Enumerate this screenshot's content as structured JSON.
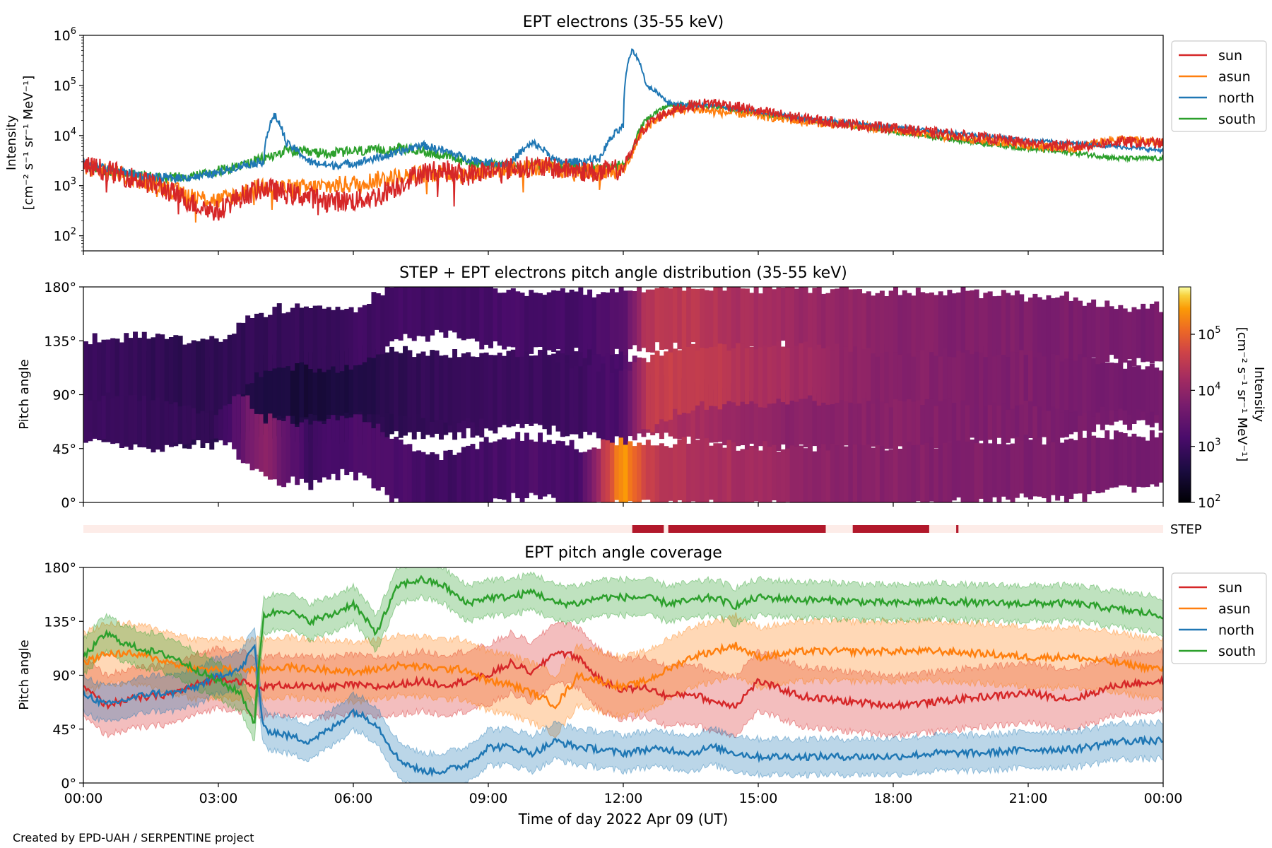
{
  "footer": "Created by EPD-UAH / SERPENTINE project",
  "colors": {
    "sun": "#d62728",
    "asun": "#ff7f0e",
    "north": "#1f77b4",
    "south": "#2ca02c",
    "step_bar": "#b2182b",
    "step_bg": "#fdece8"
  },
  "chart_data": [
    {
      "type": "line",
      "title": "EPT electrons (35-55 keV)",
      "xlabel": "",
      "ylabel_lines": [
        "Intensity",
        "[cm⁻² s⁻¹ sr⁻¹ MeV⁻¹]"
      ],
      "yscale": "log",
      "ylim": [
        50,
        1000000
      ],
      "yticks": [
        {
          "v": 100,
          "m": "10",
          "e": "2"
        },
        {
          "v": 1000,
          "m": "10",
          "e": "3"
        },
        {
          "v": 10000,
          "m": "10",
          "e": "4"
        },
        {
          "v": 100000,
          "m": "10",
          "e": "5"
        },
        {
          "v": 1000000,
          "m": "10",
          "e": "6"
        }
      ],
      "xlim_hours": [
        0,
        24
      ],
      "legend_placement": "outside-right-top",
      "legend": [
        "sun",
        "asun",
        "north",
        "south"
      ],
      "x_hours": [
        0,
        0.5,
        1,
        1.5,
        2,
        2.5,
        3,
        3.5,
        4,
        4.25,
        4.5,
        5,
        5.5,
        6,
        6.5,
        7,
        7.5,
        8,
        8.5,
        9,
        9.5,
        10,
        10.5,
        11,
        11.5,
        12,
        12.2,
        12.5,
        13,
        13.5,
        14,
        14.5,
        15,
        16,
        17,
        18,
        19,
        20,
        21,
        22,
        23,
        24
      ],
      "series": [
        {
          "name": "sun",
          "values": [
            2500,
            2000,
            1500,
            1100,
            700,
            400,
            300,
            600,
            900,
            800,
            700,
            600,
            500,
            500,
            600,
            1000,
            1800,
            2000,
            1600,
            2000,
            2200,
            2400,
            2200,
            2000,
            1800,
            2200,
            4500,
            15000,
            30000,
            40000,
            45000,
            38000,
            30000,
            22000,
            17000,
            14000,
            11000,
            9000,
            7000,
            6000,
            7500,
            7000
          ]
        },
        {
          "name": "asun",
          "values": [
            2500,
            2000,
            1500,
            1100,
            800,
            600,
            500,
            700,
            1000,
            950,
            900,
            900,
            1000,
            1100,
            1300,
            1500,
            1700,
            1800,
            1600,
            2000,
            2200,
            2300,
            2100,
            2000,
            1800,
            2000,
            4000,
            14000,
            28000,
            35000,
            30000,
            28000,
            25000,
            19000,
            16000,
            13000,
            10000,
            8000,
            6500,
            5500,
            8500,
            7000
          ]
        },
        {
          "name": "north",
          "values": [
            3000,
            2200,
            1800,
            1500,
            1400,
            1500,
            1800,
            2500,
            3000,
            25000,
            7000,
            3000,
            2500,
            2800,
            3500,
            4500,
            6500,
            5000,
            3500,
            2800,
            2800,
            7000,
            3000,
            3000,
            3500,
            15000,
            500000,
            100000,
            45000,
            40000,
            40000,
            35000,
            30000,
            22000,
            18000,
            15000,
            12000,
            10000,
            8000,
            7000,
            6000,
            5000
          ]
        },
        {
          "name": "south",
          "values": [
            2500,
            2000,
            1700,
            1500,
            1500,
            1600,
            2000,
            2500,
            3500,
            4000,
            5000,
            4500,
            4500,
            4800,
            5000,
            5500,
            5000,
            4000,
            3000,
            2600,
            2500,
            2600,
            2400,
            2300,
            2200,
            2500,
            4500,
            20000,
            40000,
            42000,
            38000,
            32000,
            27000,
            21000,
            16000,
            12000,
            9000,
            7000,
            5500,
            4500,
            3500,
            3500
          ]
        }
      ]
    },
    {
      "type": "heatmap",
      "title": "STEP + EPT electrons pitch angle distribution (35-55 keV)",
      "ylabel": "Pitch angle",
      "ylim": [
        0,
        180
      ],
      "yticks": [
        "0°",
        "45°",
        "90°",
        "135°",
        "180°"
      ],
      "colorbar": {
        "scale": "log",
        "range": [
          100,
          700000
        ],
        "ticks": [
          {
            "v": 100,
            "m": "10",
            "e": "2"
          },
          {
            "v": 1000,
            "m": "10",
            "e": "3"
          },
          {
            "v": 10000,
            "m": "10",
            "e": "4"
          },
          {
            "v": 100000,
            "m": "10",
            "e": "5"
          }
        ],
        "label": "Intensity",
        "label2": "[cm⁻² s⁻¹ sr⁻¹ MeV⁻¹]"
      },
      "x_hours": [
        0,
        1,
        2,
        3,
        4,
        5,
        6,
        7,
        8,
        9,
        10,
        11,
        12,
        12.5,
        13,
        14,
        15,
        16,
        17,
        18,
        19,
        20,
        21,
        22,
        23,
        24
      ],
      "bands": [
        {
          "name": "sun-band",
          "centers": [
            80,
            75,
            75,
            80,
            85,
            80,
            80,
            85,
            85,
            90,
            95,
            100,
            95,
            85,
            80,
            75,
            70,
            70,
            68,
            70,
            72,
            75,
            75,
            80,
            85,
            85
          ],
          "half_width": [
            25,
            25,
            28,
            30,
            30,
            30,
            30,
            30,
            30,
            30,
            30,
            30,
            30,
            28,
            25,
            25,
            25,
            25,
            25,
            25,
            25,
            25,
            25,
            25,
            20,
            20
          ],
          "log_intensity": [
            3.0,
            2.9,
            2.8,
            2.7,
            2.7,
            2.6,
            2.7,
            2.8,
            2.9,
            3.0,
            3.0,
            3.0,
            3.2,
            4.2,
            4.3,
            4.2,
            4.0,
            3.9,
            3.9,
            3.9,
            3.85,
            3.8,
            3.8,
            3.75,
            3.7,
            3.7
          ]
        },
        {
          "name": "asun-band",
          "centers": [
            100,
            100,
            95,
            90,
            95,
            100,
            100,
            100,
            95,
            95,
            95,
            85,
            80,
            90,
            100,
            110,
            108,
            110,
            110,
            110,
            110,
            105,
            108,
            100,
            95,
            95
          ],
          "half_width": [
            25,
            25,
            28,
            30,
            30,
            28,
            28,
            28,
            28,
            30,
            30,
            30,
            30,
            30,
            28,
            28,
            25,
            25,
            25,
            25,
            25,
            25,
            25,
            25,
            20,
            20
          ],
          "log_intensity": [
            3.0,
            2.9,
            2.8,
            2.7,
            2.6,
            2.5,
            2.6,
            2.8,
            2.9,
            3.0,
            3.0,
            3.0,
            3.2,
            4.5,
            4.6,
            4.5,
            4.3,
            4.2,
            4.0,
            3.9,
            3.85,
            3.8,
            3.8,
            3.75,
            3.7,
            3.7
          ]
        },
        {
          "name": "north-band",
          "centers": [
            80,
            70,
            75,
            85,
            45,
            40,
            50,
            25,
            15,
            25,
            30,
            20,
            25,
            25,
            25,
            25,
            22,
            22,
            22,
            22,
            25,
            25,
            28,
            28,
            35,
            35
          ],
          "half_width": [
            25,
            25,
            28,
            30,
            25,
            25,
            25,
            25,
            25,
            25,
            25,
            25,
            25,
            25,
            25,
            25,
            25,
            25,
            25,
            25,
            25,
            25,
            25,
            25,
            22,
            22
          ],
          "log_intensity": [
            3.0,
            2.9,
            2.9,
            2.9,
            4.0,
            3.0,
            3.2,
            3.2,
            3.0,
            3.1,
            3.2,
            3.1,
            5.5,
            4.6,
            4.4,
            4.3,
            4.2,
            4.0,
            3.9,
            3.9,
            3.85,
            3.8,
            3.8,
            3.75,
            3.7,
            3.7
          ]
        },
        {
          "name": "south-band",
          "centers": [
            110,
            115,
            110,
            105,
            135,
            140,
            135,
            160,
            165,
            155,
            150,
            150,
            150,
            152,
            155,
            155,
            155,
            155,
            153,
            150,
            150,
            150,
            148,
            145,
            140,
            140
          ],
          "half_width": [
            25,
            25,
            28,
            30,
            25,
            25,
            25,
            25,
            25,
            25,
            25,
            25,
            25,
            25,
            25,
            25,
            25,
            25,
            25,
            25,
            25,
            25,
            25,
            25,
            22,
            22
          ],
          "log_intensity": [
            3.0,
            2.9,
            2.8,
            2.8,
            2.9,
            2.9,
            3.0,
            3.1,
            3.0,
            3.1,
            3.1,
            3.1,
            3.3,
            4.4,
            4.5,
            4.4,
            4.2,
            4.1,
            4.0,
            3.9,
            3.85,
            3.8,
            3.8,
            3.75,
            3.7,
            3.7
          ]
        }
      ]
    },
    {
      "type": "bar",
      "title": "",
      "label": "STEP",
      "available_hours": [
        [
          12.2,
          12.9
        ],
        [
          13.0,
          16.5
        ],
        [
          17.1,
          18.8
        ],
        [
          19.4,
          19.45
        ]
      ]
    },
    {
      "type": "line",
      "title": "EPT pitch angle coverage",
      "xlabel": "Time of day 2022 Apr 09 (UT)",
      "ylabel": "Pitch angle",
      "ylim": [
        0,
        180
      ],
      "yticks": [
        "0°",
        "45°",
        "90°",
        "135°",
        "180°"
      ],
      "xticks": [
        "00:00",
        "03:00",
        "06:00",
        "09:00",
        "12:00",
        "15:00",
        "18:00",
        "21:00",
        "00:00"
      ],
      "legend_placement": "outside-right-top",
      "legend": [
        "sun",
        "asun",
        "north",
        "south"
      ],
      "x_hours": [
        0,
        0.5,
        1,
        1.5,
        2,
        2.5,
        3,
        3.5,
        3.8,
        4,
        4.5,
        5,
        5.5,
        6,
        6.5,
        7,
        7.5,
        8,
        8.5,
        9,
        9.5,
        10,
        10.5,
        11,
        11.5,
        12,
        12.5,
        13,
        13.5,
        14,
        14.5,
        15,
        16,
        17,
        18,
        19,
        20,
        21,
        22,
        23,
        24
      ],
      "series": [
        {
          "name": "sun",
          "band": 25,
          "values": [
            80,
            65,
            70,
            72,
            75,
            82,
            88,
            85,
            80,
            80,
            82,
            80,
            80,
            82,
            80,
            82,
            85,
            82,
            85,
            90,
            100,
            92,
            110,
            105,
            85,
            78,
            80,
            72,
            75,
            68,
            65,
            85,
            72,
            68,
            65,
            68,
            72,
            75,
            70,
            82,
            85
          ]
        },
        {
          "name": "asun",
          "band": 25,
          "values": [
            100,
            108,
            108,
            105,
            100,
            95,
            95,
            95,
            95,
            95,
            97,
            95,
            95,
            92,
            95,
            98,
            97,
            95,
            95,
            85,
            82,
            75,
            65,
            90,
            85,
            80,
            85,
            95,
            105,
            110,
            115,
            105,
            110,
            110,
            110,
            110,
            108,
            105,
            105,
            100,
            95
          ]
        },
        {
          "name": "north",
          "band": 15,
          "values": [
            75,
            65,
            70,
            75,
            75,
            80,
            90,
            95,
            115,
            45,
            40,
            35,
            45,
            60,
            50,
            20,
            10,
            10,
            15,
            30,
            30,
            25,
            35,
            30,
            28,
            25,
            28,
            28,
            25,
            30,
            25,
            22,
            22,
            22,
            22,
            25,
            25,
            28,
            28,
            35,
            35
          ]
        },
        {
          "name": "south",
          "band": 15,
          "values": [
            105,
            125,
            115,
            110,
            105,
            95,
            85,
            75,
            50,
            140,
            145,
            135,
            140,
            150,
            125,
            165,
            170,
            165,
            150,
            155,
            155,
            160,
            150,
            150,
            155,
            155,
            155,
            150,
            152,
            155,
            148,
            155,
            153,
            152,
            150,
            152,
            150,
            150,
            150,
            145,
            140
          ]
        }
      ]
    }
  ]
}
